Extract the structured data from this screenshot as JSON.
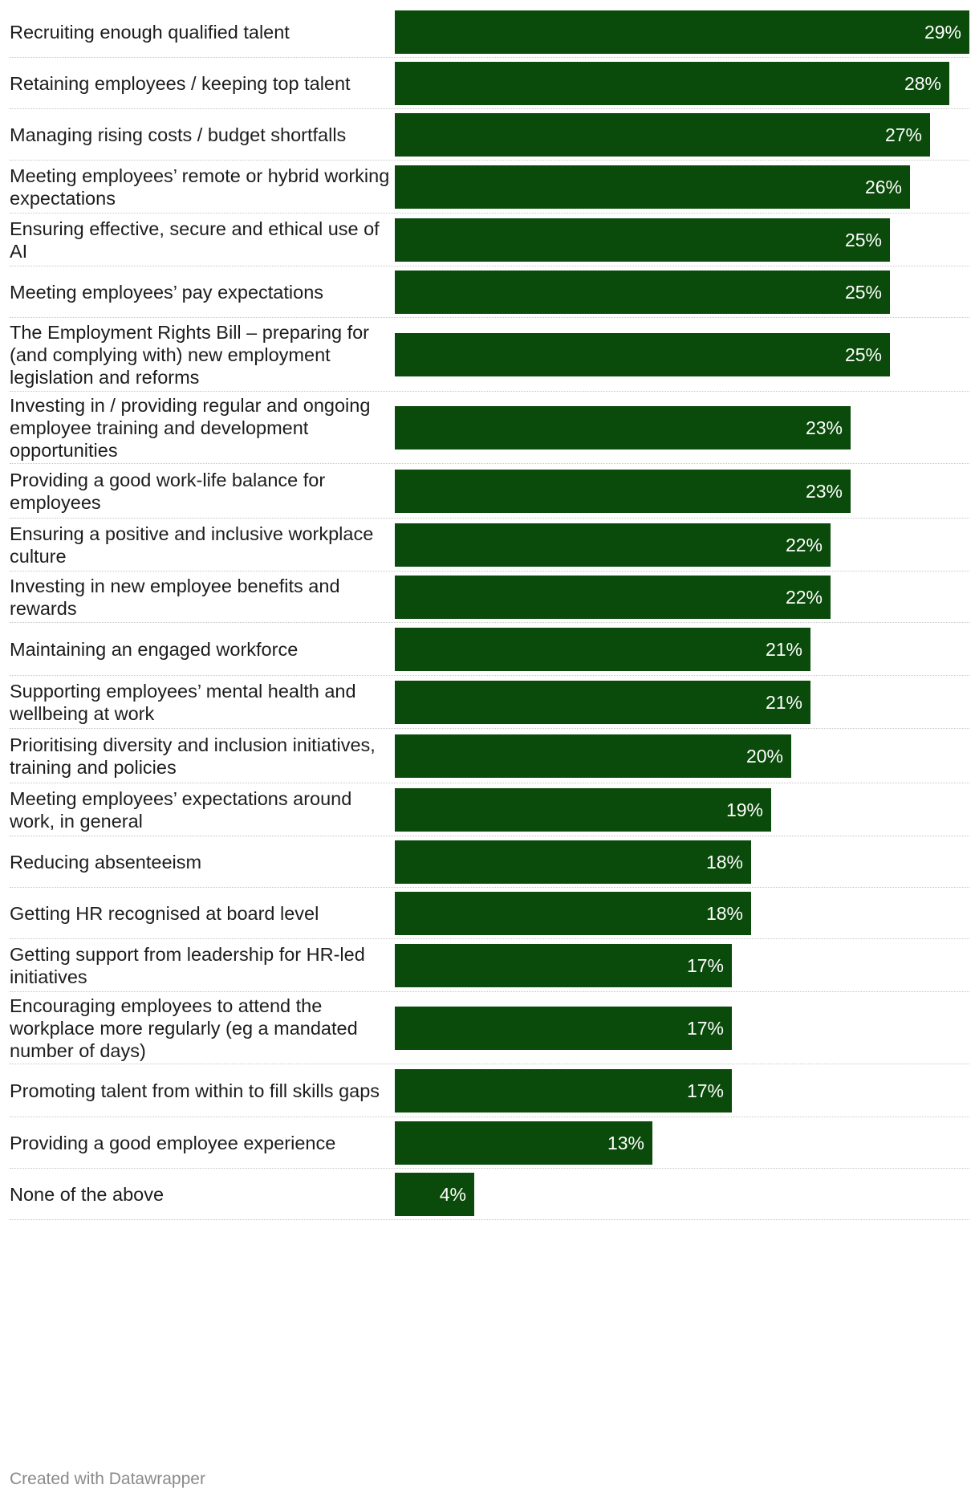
{
  "chart_data": {
    "type": "bar",
    "orientation": "horizontal",
    "title": "",
    "xlabel": "",
    "ylabel": "",
    "xlim": [
      0,
      29
    ],
    "unit": "%",
    "bar_color": "#0a4a0a",
    "categories": [
      "Recruiting enough qualified talent",
      "Retaining employees / keeping top talent",
      "Managing rising costs / budget shortfalls",
      "Meeting employees’ remote or hybrid working expectations",
      "Ensuring effective, secure and ethical use of AI",
      "Meeting employees’ pay expectations",
      "The Employment Rights Bill – preparing for (and complying with) new employment legislation and reforms",
      "Investing in / providing regular and ongoing employee training and development opportunities",
      "Providing a good work-life balance for employees",
      "Ensuring a positive and inclusive workplace culture",
      "Investing in new employee benefits and rewards",
      "Maintaining an engaged workforce",
      "Supporting employees’ mental health and wellbeing at work",
      "Prioritising diversity and inclusion initiatives, training and policies",
      "Meeting employees’ expectations around work, in general",
      "Reducing absenteeism",
      "Getting HR recognised at board level",
      "Getting support from leadership for HR-led initiatives",
      "Encouraging employees to attend the workplace more regularly (eg a mandated number of days)",
      "Promoting talent from within to fill skills gaps",
      "Providing a good employee experience",
      "None of the above"
    ],
    "values": [
      29,
      28,
      27,
      26,
      25,
      25,
      25,
      23,
      23,
      22,
      22,
      21,
      21,
      20,
      19,
      18,
      18,
      17,
      17,
      17,
      13,
      4
    ],
    "value_labels": [
      "29%",
      "28%",
      "27%",
      "26%",
      "25%",
      "25%",
      "25%",
      "23%",
      "23%",
      "22%",
      "22%",
      "21%",
      "21%",
      "20%",
      "19%",
      "18%",
      "18%",
      "17%",
      "17%",
      "17%",
      "13%",
      "4%"
    ]
  },
  "footer": {
    "credit": "Created with Datawrapper"
  }
}
